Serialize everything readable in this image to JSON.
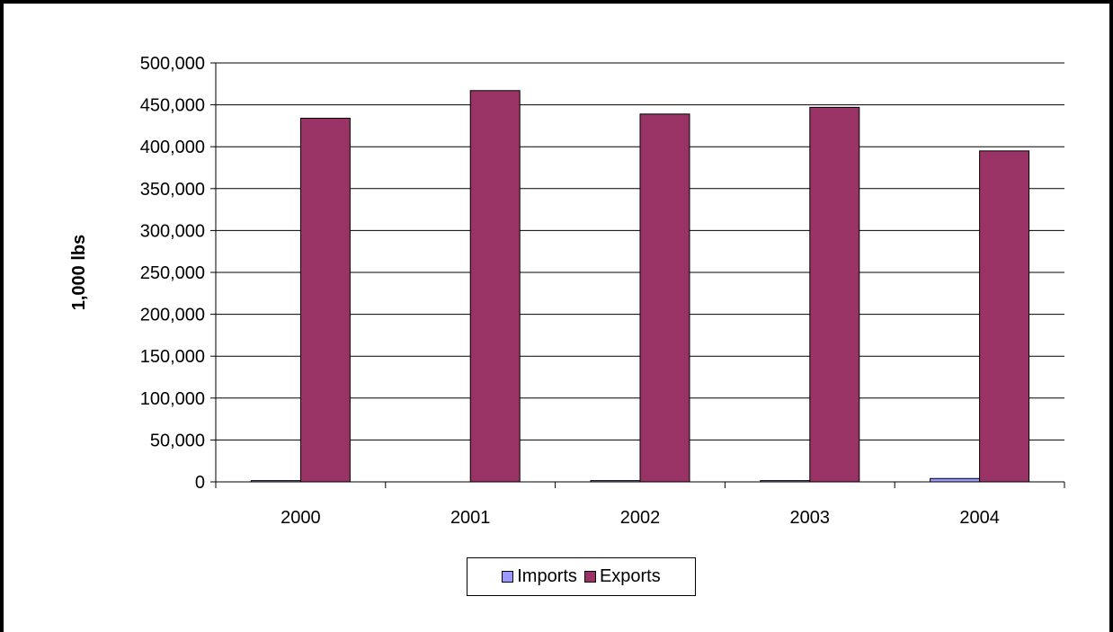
{
  "chart_data": {
    "type": "bar",
    "categories": [
      "2000",
      "2001",
      "2002",
      "2003",
      "2004"
    ],
    "series": [
      {
        "name": "Imports",
        "color": "#9999ff",
        "values": [
          1500,
          0,
          1500,
          1500,
          4000
        ]
      },
      {
        "name": "Exports",
        "color": "#993366",
        "values": [
          434000,
          467000,
          439000,
          447000,
          395000
        ]
      }
    ],
    "title": "",
    "xlabel": "",
    "ylabel": "1,000 lbs",
    "ylim": [
      0,
      500000
    ],
    "yticks": [
      0,
      50000,
      100000,
      150000,
      200000,
      250000,
      300000,
      350000,
      400000,
      450000,
      500000
    ],
    "ytick_labels": [
      "0",
      "50,000",
      "100,000",
      "150,000",
      "200,000",
      "250,000",
      "300,000",
      "350,000",
      "400,000",
      "450,000",
      "500,000"
    ],
    "grid": true,
    "legend": "bottom"
  }
}
